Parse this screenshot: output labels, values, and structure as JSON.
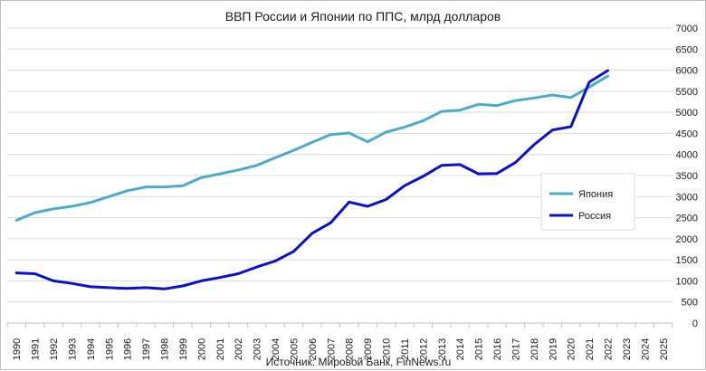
{
  "chart_data": {
    "type": "line",
    "title": "ВВП России и Японии по ППС, млрд долларов",
    "source": "Источник: Мировой Банк, FinNews.ru",
    "xlabel": "",
    "ylabel": "",
    "x_ticks": [
      "1990",
      "1991",
      "1992",
      "1993",
      "1994",
      "1995",
      "1996",
      "1997",
      "1998",
      "1999",
      "2000",
      "2001",
      "2002",
      "2003",
      "2004",
      "2005",
      "2006",
      "2007",
      "2008",
      "2009",
      "2010",
      "2011",
      "2012",
      "2013",
      "2014",
      "2015",
      "2016",
      "2017",
      "2018",
      "2019",
      "2020",
      "2021",
      "2022",
      "2023",
      "2024",
      "2025"
    ],
    "y_ticks": [
      "0",
      "500",
      "1000",
      "1500",
      "2000",
      "2500",
      "3000",
      "3500",
      "4000",
      "4500",
      "5000",
      "5500",
      "6000",
      "6500",
      "7000"
    ],
    "ylim": [
      0,
      7000
    ],
    "grid": true,
    "legend_position": "right",
    "x": [
      1990,
      1991,
      1992,
      1993,
      1994,
      1995,
      1996,
      1997,
      1998,
      1999,
      2000,
      2001,
      2002,
      2003,
      2004,
      2005,
      2006,
      2007,
      2008,
      2009,
      2010,
      2011,
      2012,
      2013,
      2014,
      2015,
      2016,
      2017,
      2018,
      2019,
      2020,
      2021,
      2022
    ],
    "series": [
      {
        "name": "Япония",
        "color": "#4bacc6",
        "values": [
          2440,
          2620,
          2710,
          2770,
          2860,
          3000,
          3140,
          3230,
          3230,
          3260,
          3450,
          3540,
          3630,
          3740,
          3920,
          4100,
          4290,
          4470,
          4510,
          4300,
          4530,
          4650,
          4800,
          5020,
          5050,
          5190,
          5160,
          5280,
          5340,
          5410,
          5350,
          5600,
          5860
        ]
      },
      {
        "name": "Россия",
        "color": "#0a12c9",
        "values": [
          1190,
          1170,
          1000,
          940,
          860,
          840,
          820,
          840,
          810,
          880,
          1000,
          1080,
          1170,
          1330,
          1470,
          1700,
          2130,
          2380,
          2870,
          2770,
          2930,
          3260,
          3480,
          3740,
          3760,
          3540,
          3550,
          3810,
          4230,
          4580,
          4660,
          5720,
          5990
        ]
      }
    ]
  }
}
